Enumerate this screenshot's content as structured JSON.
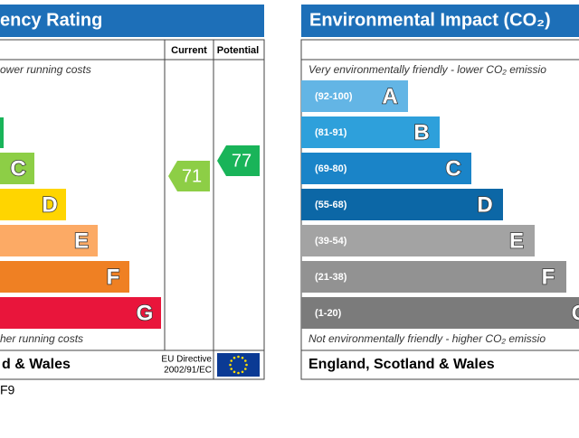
{
  "energy": {
    "title": "ency Rating",
    "col_current": "Current",
    "col_potential": "Potential",
    "top_note": "ower running costs",
    "bottom_note": "her running costs",
    "bands": [
      "C",
      "D",
      "E",
      "F",
      "G"
    ],
    "current": 71,
    "potential": 77,
    "footer": "d & Wales",
    "directive_line1": "EU Directive",
    "directive_line2": "2002/91/EC"
  },
  "environment": {
    "title": "Environmental Impact (CO₂)",
    "top_note": "Very environmentally friendly - lower CO₂ emissio",
    "bottom_note": "Not environmentally friendly - higher CO₂ emissio",
    "bands": [
      {
        "range": "(92-100)",
        "letter": "A"
      },
      {
        "range": "(81-91)",
        "letter": "B"
      },
      {
        "range": "(69-80)",
        "letter": "C"
      },
      {
        "range": "(55-68)",
        "letter": "D"
      },
      {
        "range": "(39-54)",
        "letter": "E"
      },
      {
        "range": "(21-38)",
        "letter": "F"
      },
      {
        "range": "(1-20)",
        "letter": "G"
      }
    ],
    "footer": "England, Scotland & Wales"
  },
  "reference": "F9"
}
